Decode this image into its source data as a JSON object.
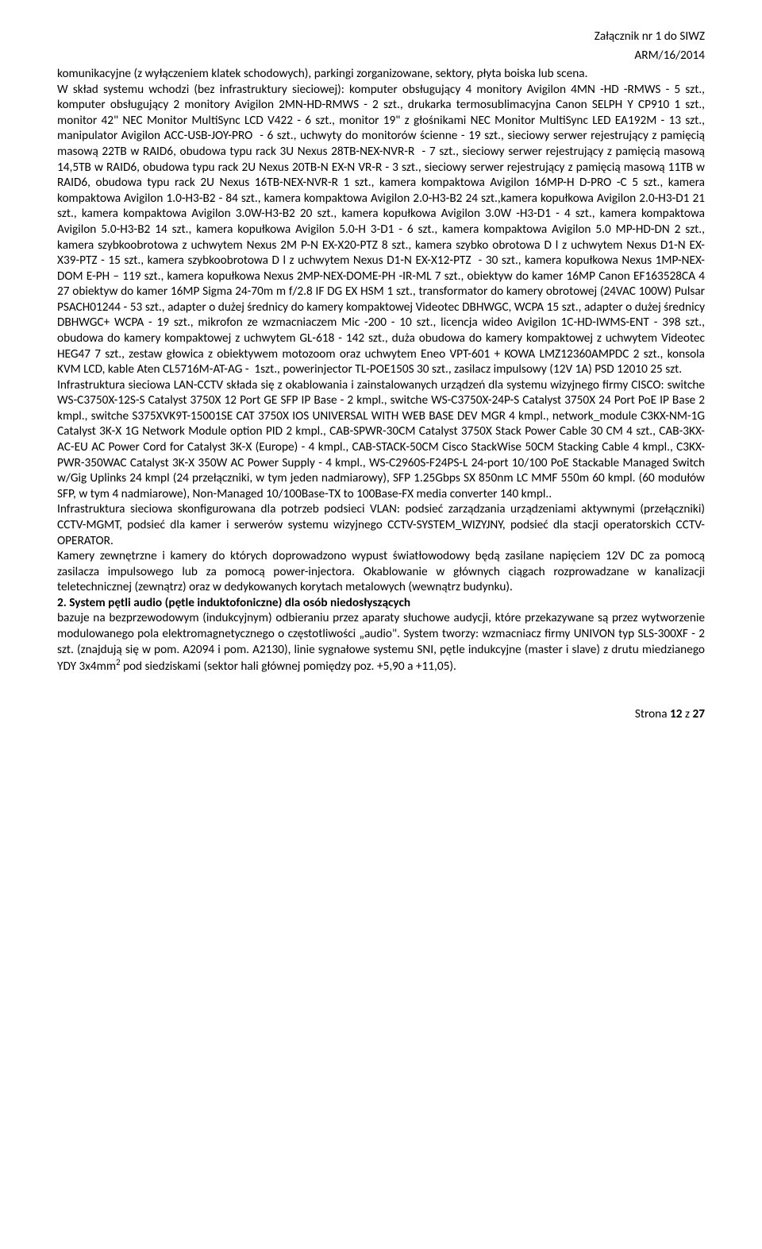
{
  "header": {
    "line1": "Załącznik nr 1 do SIWZ",
    "line2": "ARM/16/2014"
  },
  "paragraphs": {
    "p1": "komunikacyjne (z wyłączeniem klatek schodowych), parkingi zorganizowane, sektory, płyta boiska lub scena.",
    "p2a": "W skład systemu wchodzi (bez infrastruktury sieciowej): komputer obsługujący 4 monitory Avigilon 4MN -HD -RMWS - 5 szt., komputer obsługujący 2 monitory Avigilon 2MN-HD-RMWS - 2 szt., drukarka termosublimacyjna Canon SELPH Y CP910 1 szt., monitor 42\" NEC Monitor MultiSync LCD V422 - 6 szt., monitor 19\" z głośnikami NEC Monitor MultiSync LED EA192M - 13 szt., manipulator Avigilon ACC-USB-JOY-PRO  - 6 szt., uchwyty do monitorów ścienne - 19 szt., sieciowy serwer rejestrujący z pamięcią masową 22TB w RAID6, obudowa typu rack 3U Nexus 28TB-NEX-NVR-R  - 7 szt., sieciowy serwer rejestrujący z pamięcią masową 14,5TB w RAID6, obudowa typu rack 2U Nexus 20TB-N EX-N VR-R - 3 szt., sieciowy serwer rejestrujący z pamięcią masową 11TB w RAID6, obudowa typu rack 2U Nexus 16TB-NEX-NVR-R 1 szt., kamera kompaktowa Avigilon 16MP-H D-PRO -C 5 szt., kamera kompaktowa Avigilon 1.0-H3-B2 - 84 szt., kamera kompaktowa Avigilon 2.0-H3-B2 24 szt.,kamera kopułkowa Avigilon 2.0-H3-D1 21 szt., kamera kompaktowa Avigilon 3.0W-H3-B2 20 szt., kamera kopułkowa Avigilon 3.0W -H3-D1 - 4 szt., kamera kompaktowa Avigilon 5.0-H3-B2 14 szt., kamera kopułkowa Avigilon 5.0-H 3-D1 - 6 szt., kamera kompaktowa Avigilon 5.0 MP-HD-DN 2 szt., kamera szybkoobrotowa z uchwytem Nexus 2M P-N EX-X20-PTZ 8 szt., kamera szybko obrotowa D l z uchwytem Nexus D1-N EX-X39-PTZ - 15 szt., kamera szybkoobrotowa D l z uchwytem Nexus D1-N EX-X12-PTZ  - 30 szt., kamera kopułkowa Nexus 1MP-NEX-DOM E-PH – 119 szt., kamera kopułkowa Nexus 2MP-NEX-DOME-PH -IR-ML 7 szt., obiektyw do kamer 16MP Canon EF163528CA 4 27 obiektyw do kamer 16MP Sigma 24-70m m f/2.8 IF DG EX HSM 1 szt., transformator do kamery obrotowej (24VAC 100W) Pulsar PSACH01244 - 53 szt., adapter o dużej średnicy do kamery kompaktowej Videotec DBHWGC, WCPA 15 szt., adapter o dużej średnicy DBHWGC+ WCPA - 19 szt., mikrofon ze wzmacniaczem Mic -200 - 10 szt., licencja wideo Avigilon 1C-HD-IWMS-ENT - 398 szt., obudowa do kamery kompaktowej z uchwytem GL-618 - 142 szt., duża obudowa do kamery kompaktowej z uchwytem Videotec HEG47 7 szt., zestaw głowica z obiektywem motozoom oraz uchwytem Eneo VPT-601 + KOWA LMZ12360AMPDC 2 szt., konsola KVM LCD, kable Aten CL5716M-AT-AG -  1szt., powerinjector TL-POE150S 30 szt., zasilacz impulsowy (12V 1A) PSD 12010 25 szt.",
    "p3": "Infrastruktura sieciowa LAN-CCTV składa się z okablowania i zainstalowanych urządzeń dla systemu wizyjnego firmy CISCO: switche WS-C3750X-12S-S Catalyst 3750X 12 Port GE SFP IP Base - 2 kmpl., switche WS-C3750X-24P-S Catalyst 3750X 24 Port PoE IP Base 2 kmpl., switche S375XVK9T-15001SE CAT 3750X IOS UNIVERSAL WITH WEB BASE DEV MGR 4 kmpl., network_module C3KX-NM-1G Catalyst 3K-X 1G Network Module option PID 2 kmpl., CAB-SPWR-30CM Catalyst 3750X Stack Power Cable 30 CM 4 szt., CAB-3KX-AC-EU AC Power Cord for Catalyst 3K-X (Europe) - 4 kmpl., CAB-STACK-50CM Cisco StackWise 50CM Stacking Cable 4 kmpl., C3KX-PWR-350WAC Catalyst 3K-X 350W AC Power Supply - 4 kmpl., WS-C2960S-F24PS-L 24-port 10/100 PoE Stackable Managed Switch w/Gig Uplinks 24 kmpl (24 przełączniki, w tym jeden nadmiarowy), SFP 1.25Gbps SX 850nm LC MMF 550m 60 kmpl. (60 modułów SFP, w tym 4 nadmiarowe), Non-Managed 10/100Base-TX to 100Base-FX media converter 140 kmpl..",
    "p4": "Infrastruktura sieciowa skonfigurowana dla potrzeb podsieci VLAN: podsieć zarządzania urządzeniami aktywnymi (przełączniki) CCTV-MGMT, podsieć dla kamer i serwerów systemu wizyjnego CCTV-SYSTEM_WIZYJNY, podsieć dla stacji operatorskich CCTV-OPERATOR.",
    "p5": "Kamery zewnętrzne i kamery do których doprowadzono wypust światłowodowy będą zasilane napięciem 12V DC za pomocą zasilacza impulsowego lub za pomocą power-injectora. Okablowanie w głównych ciągach rozprowadzane w kanalizacji teletechnicznej (zewnątrz) oraz w dedykowanych korytach metalowych (wewnątrz budynku).",
    "h2": "2. System pętli audio (pętle induktofoniczne) dla osób niedosłyszących",
    "p6a": "bazuje na bezprzewodowym (indukcyjnym) odbieraniu przez aparaty słuchowe audycji, które przekazywane są przez wytworzenie modulowanego pola elektromagnetycznego o częstotliwości „audio\". System tworzy: wzmacniacz firmy UNIVON typ SLS-300XF - 2 szt. (znajdują się w pom. A2094 i pom. A2130), linie sygnałowe systemu SNI, pętle indukcyjne (master i slave) z drutu miedzianego YDY 3x4mm",
    "p6b": " pod siedziskami (sektor hali głównej pomiędzy poz. +5,90 a +11,05)."
  },
  "footer": {
    "text": "Strona 12 z 27"
  }
}
